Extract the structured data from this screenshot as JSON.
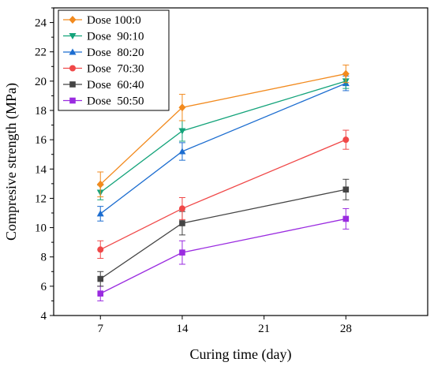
{
  "chart_data": {
    "type": "line",
    "xlabel": "Curing time (day)",
    "ylabel": "Compresive strength (MPa)",
    "xlim": [
      3,
      35
    ],
    "ylim": [
      4,
      25
    ],
    "xticks": [
      7,
      14,
      21,
      28
    ],
    "yticks": [
      4,
      6,
      8,
      10,
      12,
      14,
      16,
      18,
      20,
      22,
      24
    ],
    "grid": false,
    "legend_position": "top-left",
    "x": [
      7,
      14,
      28
    ],
    "series": [
      {
        "name": "Dose 100:0",
        "color": "#F28A1E",
        "marker": "diamond",
        "values": [
          12.95,
          18.2,
          20.5
        ],
        "errors": [
          0.85,
          0.9,
          0.6
        ]
      },
      {
        "name": "Dose  90:10",
        "color": "#13A37A",
        "marker": "triangle-down",
        "values": [
          12.4,
          16.6,
          20.0
        ],
        "errors": [
          0.5,
          0.7,
          0.5
        ]
      },
      {
        "name": "Dose  80:20",
        "color": "#1C6DD0",
        "marker": "triangle-up",
        "values": [
          10.95,
          15.2,
          19.85
        ],
        "errors": [
          0.5,
          0.6,
          0.5
        ]
      },
      {
        "name": "Dose  70:30",
        "color": "#F04848",
        "marker": "circle",
        "values": [
          8.5,
          11.3,
          16.0
        ],
        "errors": [
          0.6,
          0.75,
          0.65
        ]
      },
      {
        "name": "Dose  60:40",
        "color": "#444444",
        "marker": "square",
        "values": [
          6.5,
          10.3,
          12.6
        ],
        "errors": [
          0.5,
          0.8,
          0.7
        ]
      },
      {
        "name": "Dose  50:50",
        "color": "#9A2BE0",
        "marker": "square",
        "values": [
          5.5,
          8.3,
          10.6
        ],
        "errors": [
          0.5,
          0.8,
          0.7
        ]
      }
    ]
  }
}
